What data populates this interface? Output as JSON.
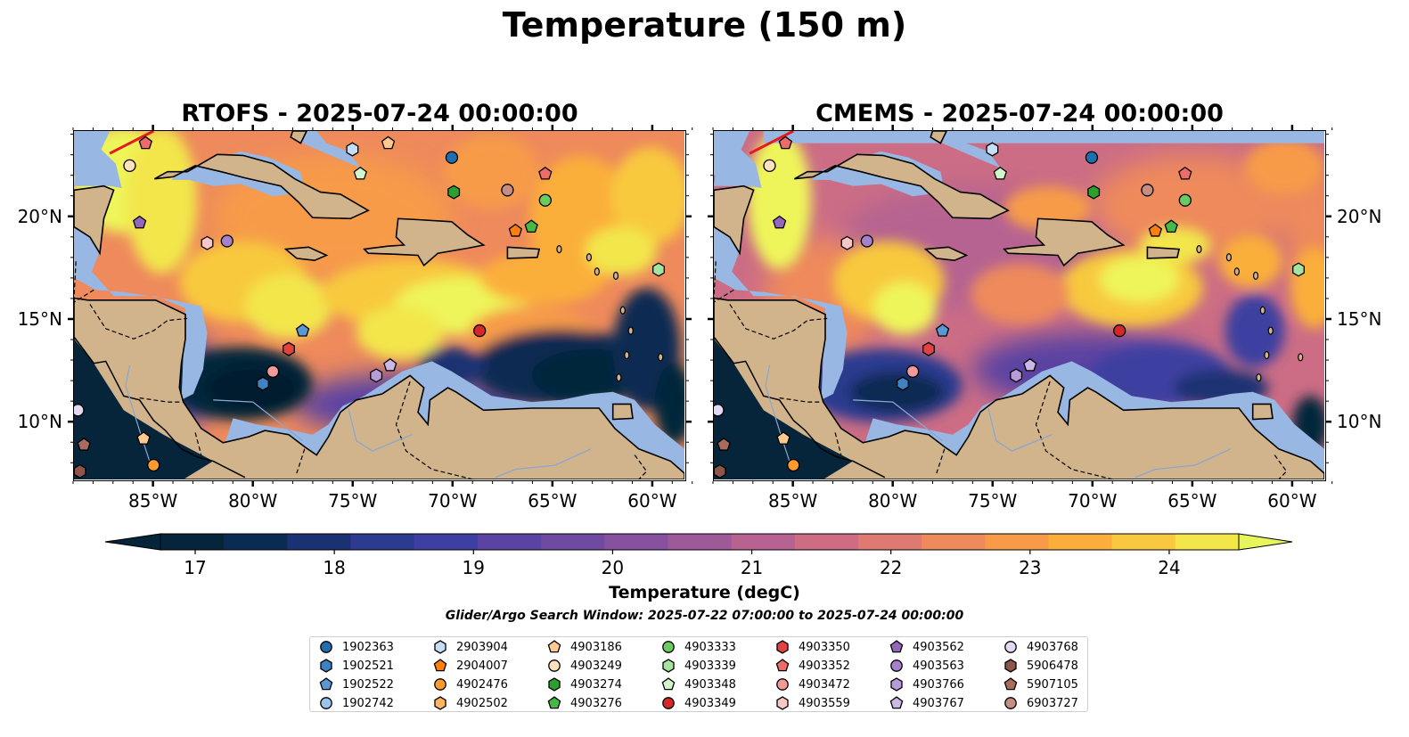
{
  "title": "Temperature (150 m)",
  "panels": [
    {
      "id": "rtofs",
      "title": "RTOFS - 2025-07-24 00:00:00"
    },
    {
      "id": "cmems",
      "title": "CMEMS - 2025-07-24 00:00:00"
    }
  ],
  "axes": {
    "lon_ticks": [
      "85°W",
      "80°W",
      "75°W",
      "70°W",
      "65°W",
      "60°W"
    ],
    "lat_ticks": [
      "20°N",
      "15°N",
      "10°N"
    ],
    "lon_values": [
      -85,
      -80,
      -75,
      -70,
      -65,
      -60
    ],
    "lat_values": [
      20,
      15,
      10
    ],
    "lon_range": [
      -89,
      -58.3
    ],
    "lat_range": [
      7.1,
      24.2
    ]
  },
  "colorbar": {
    "title": "Temperature (degC)",
    "ticks": [
      "17",
      "18",
      "19",
      "20",
      "21",
      "22",
      "23",
      "24"
    ],
    "min": 16.75,
    "max": 24.5,
    "step": 0.5,
    "colors": [
      "#06253b",
      "#0b2c52",
      "#1a3272",
      "#2c3a8f",
      "#3d40a0",
      "#5a43a3",
      "#6e4aa0",
      "#86519e",
      "#9e5a98",
      "#b66391",
      "#cc6d85",
      "#df7a73",
      "#ee8a5c",
      "#f79b48",
      "#fbaf3a",
      "#f8c93e",
      "#f2e64b"
    ],
    "under_color": "#06253b",
    "over_color": "#e6f65a"
  },
  "search_window": "Glider/Argo Search Window: 2025-07-22 07:00:00 to 2025-07-24 00:00:00",
  "legend": [
    {
      "id": "1902363",
      "color": "#1f6fb0",
      "shape": "circle"
    },
    {
      "id": "1902521",
      "color": "#3f82c4",
      "shape": "hexagon"
    },
    {
      "id": "1902522",
      "color": "#5a98d4",
      "shape": "pentagon"
    },
    {
      "id": "1902742",
      "color": "#9ac4ea",
      "shape": "circle"
    },
    {
      "id": "2903904",
      "color": "#c6def5",
      "shape": "hexagon"
    },
    {
      "id": "2904007",
      "color": "#ff7f0e",
      "shape": "pentagon"
    },
    {
      "id": "4902476",
      "color": "#ff9a30",
      "shape": "circle"
    },
    {
      "id": "4902502",
      "color": "#ffb45e",
      "shape": "hexagon"
    },
    {
      "id": "4903186",
      "color": "#ffc990",
      "shape": "pentagon"
    },
    {
      "id": "4903249",
      "color": "#ffe1c0",
      "shape": "circle"
    },
    {
      "id": "4903274",
      "color": "#2ca02c",
      "shape": "hexagon"
    },
    {
      "id": "4903276",
      "color": "#45b845",
      "shape": "pentagon"
    },
    {
      "id": "4903333",
      "color": "#6ccb60",
      "shape": "circle"
    },
    {
      "id": "4903339",
      "color": "#a5e3a0",
      "shape": "hexagon"
    },
    {
      "id": "4903348",
      "color": "#d2f5cc",
      "shape": "pentagon"
    },
    {
      "id": "4903349",
      "color": "#d62728",
      "shape": "circle"
    },
    {
      "id": "4903350",
      "color": "#e24242",
      "shape": "hexagon"
    },
    {
      "id": "4903352",
      "color": "#ec6b6b",
      "shape": "pentagon"
    },
    {
      "id": "4903472",
      "color": "#f59a9a",
      "shape": "circle"
    },
    {
      "id": "4903559",
      "color": "#fbc6c6",
      "shape": "hexagon"
    },
    {
      "id": "4903562",
      "color": "#9467bd",
      "shape": "pentagon"
    },
    {
      "id": "4903563",
      "color": "#a580cb",
      "shape": "circle"
    },
    {
      "id": "4903766",
      "color": "#b89cd8",
      "shape": "hexagon"
    },
    {
      "id": "4903767",
      "color": "#ccb8e6",
      "shape": "pentagon"
    },
    {
      "id": "4903768",
      "color": "#e5d8f3",
      "shape": "circle"
    },
    {
      "id": "5906478",
      "color": "#8c564b",
      "shape": "hexagon"
    },
    {
      "id": "5907105",
      "color": "#a96b5e",
      "shape": "pentagon"
    },
    {
      "id": "6903727",
      "color": "#c48e84",
      "shape": "circle"
    }
  ],
  "floats": [
    {
      "id": "1902363",
      "lon": -70.0,
      "lat": 22.9
    },
    {
      "id": "1902521",
      "lon": -79.5,
      "lat": 11.8
    },
    {
      "id": "1902522",
      "lon": -77.5,
      "lat": 14.4
    },
    {
      "id": "2903904",
      "lon": -75.0,
      "lat": 23.3
    },
    {
      "id": "4902476",
      "lon": -85.0,
      "lat": 7.8
    },
    {
      "id": "4903186",
      "lon": -73.2,
      "lat": 23.6
    },
    {
      "id": "4903186",
      "lon": -85.5,
      "lat": 9.1
    },
    {
      "id": "4903249",
      "lon": -86.2,
      "lat": 22.5
    },
    {
      "id": "4903274",
      "lon": -69.9,
      "lat": 21.2
    },
    {
      "id": "4903276",
      "lon": -66.0,
      "lat": 19.5
    },
    {
      "id": "4903333",
      "lon": -65.3,
      "lat": 20.8
    },
    {
      "id": "4903348",
      "lon": -74.6,
      "lat": 22.1
    },
    {
      "id": "4903349",
      "lon": -68.6,
      "lat": 14.4
    },
    {
      "id": "4903350",
      "lon": -78.2,
      "lat": 13.5
    },
    {
      "id": "4903352",
      "lon": -65.3,
      "lat": 22.1
    },
    {
      "id": "4903352",
      "lon": -85.4,
      "lat": 23.6
    },
    {
      "id": "4903472",
      "lon": -79.0,
      "lat": 12.4
    },
    {
      "id": "4903559",
      "lon": -82.3,
      "lat": 18.7
    },
    {
      "id": "4903562",
      "lon": -85.7,
      "lat": 19.7
    },
    {
      "id": "4903563",
      "lon": -81.3,
      "lat": 18.8
    },
    {
      "id": "4903766",
      "lon": -73.8,
      "lat": 12.2
    },
    {
      "id": "4903767",
      "lon": -73.1,
      "lat": 12.7
    },
    {
      "id": "4903768",
      "lon": -88.8,
      "lat": 10.5
    },
    {
      "id": "5906478",
      "lon": -88.7,
      "lat": 7.5
    },
    {
      "id": "5907105",
      "lon": -88.5,
      "lat": 8.8
    },
    {
      "id": "6903727",
      "lon": -67.2,
      "lat": 21.3
    },
    {
      "id": "2904007",
      "lon": -66.8,
      "lat": 19.3
    },
    {
      "id": "4903339",
      "lon": -59.6,
      "lat": 17.4
    }
  ]
}
